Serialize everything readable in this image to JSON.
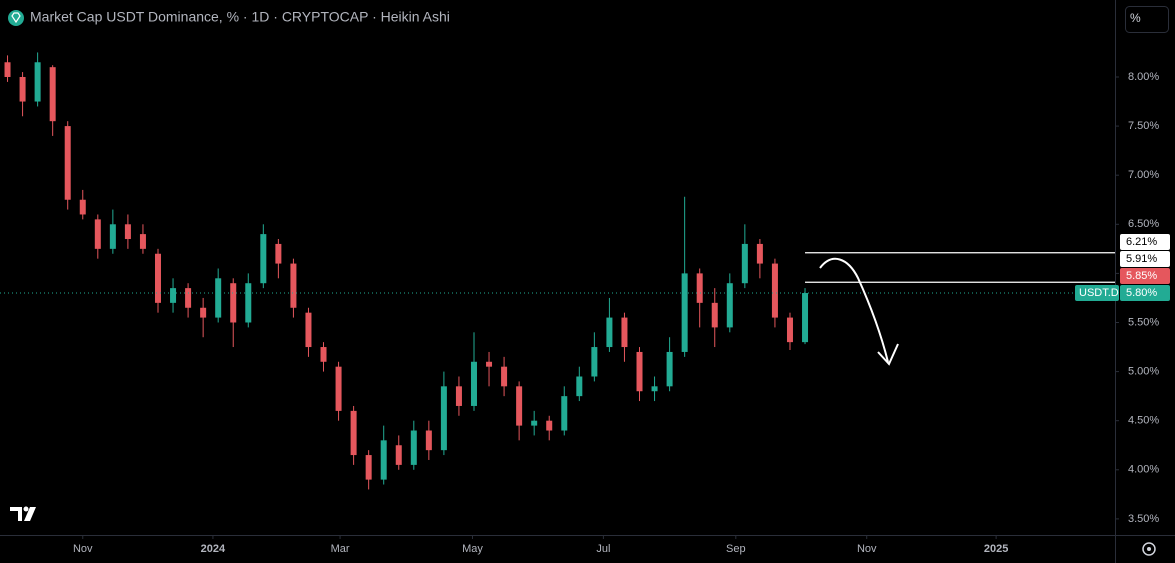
{
  "header": {
    "title": "Market Cap USDT Dominance, % · 1D · CRYPTOCAP · Heikin Ashi",
    "unit_button": "%"
  },
  "chart_data": {
    "type": "candlestick",
    "up_color": "#22ab94",
    "down_color": "#e5575d",
    "xlim": [
      0,
      74.1
    ],
    "xticks": [
      {
        "value": 5.5,
        "label": "Nov"
      },
      {
        "value": 14.15,
        "label": "2024"
      },
      {
        "value": 22.6,
        "label": "Mar"
      },
      {
        "value": 31.4,
        "label": "May"
      },
      {
        "value": 40.1,
        "label": "Jul"
      },
      {
        "value": 48.9,
        "label": "Sep"
      },
      {
        "value": 57.6,
        "label": "Nov"
      },
      {
        "value": 66.2,
        "label": "2025"
      }
    ],
    "ylim": [
      3.336,
      8.784
    ],
    "yticks": [
      {
        "value": 3.5,
        "label": "3.50%"
      },
      {
        "value": 4,
        "label": "4.00%"
      },
      {
        "value": 4.5,
        "label": "4.50%"
      },
      {
        "value": 5,
        "label": "5.00%"
      },
      {
        "value": 5.5,
        "label": "5.50%"
      },
      {
        "value": 6,
        "label": "6.00%"
      },
      {
        "value": 6.5,
        "label": "6.50%"
      },
      {
        "value": 7,
        "label": "7.00%"
      },
      {
        "value": 7.5,
        "label": "7.50%"
      },
      {
        "value": 8,
        "label": "8.00%"
      }
    ],
    "ohlc": [
      [
        8.15,
        8.22,
        7.95,
        8.0
      ],
      [
        8.0,
        8.05,
        7.6,
        7.75
      ],
      [
        7.75,
        8.25,
        7.7,
        8.15
      ],
      [
        8.1,
        8.12,
        7.4,
        7.55
      ],
      [
        7.5,
        7.55,
        6.65,
        6.75
      ],
      [
        6.75,
        6.85,
        6.55,
        6.6
      ],
      [
        6.55,
        6.6,
        6.15,
        6.25
      ],
      [
        6.25,
        6.65,
        6.2,
        6.5
      ],
      [
        6.5,
        6.6,
        6.25,
        6.35
      ],
      [
        6.4,
        6.5,
        6.2,
        6.25
      ],
      [
        6.2,
        6.25,
        5.6,
        5.7
      ],
      [
        5.7,
        5.95,
        5.6,
        5.85
      ],
      [
        5.85,
        5.9,
        5.55,
        5.65
      ],
      [
        5.65,
        5.75,
        5.35,
        5.55
      ],
      [
        5.55,
        6.05,
        5.5,
        5.95
      ],
      [
        5.9,
        5.95,
        5.25,
        5.5
      ],
      [
        5.5,
        6.0,
        5.45,
        5.9
      ],
      [
        5.9,
        6.5,
        5.85,
        6.4
      ],
      [
        6.3,
        6.35,
        5.95,
        6.1
      ],
      [
        6.1,
        6.15,
        5.55,
        5.65
      ],
      [
        5.6,
        5.65,
        5.15,
        5.25
      ],
      [
        5.25,
        5.3,
        5.0,
        5.1
      ],
      [
        5.05,
        5.1,
        4.5,
        4.6
      ],
      [
        4.6,
        4.65,
        4.05,
        4.15
      ],
      [
        4.15,
        4.2,
        3.8,
        3.9
      ],
      [
        3.9,
        4.45,
        3.85,
        4.3
      ],
      [
        4.25,
        4.35,
        4.0,
        4.05
      ],
      [
        4.05,
        4.5,
        4.0,
        4.4
      ],
      [
        4.4,
        4.5,
        4.1,
        4.2
      ],
      [
        4.2,
        5.0,
        4.15,
        4.85
      ],
      [
        4.85,
        4.95,
        4.55,
        4.65
      ],
      [
        4.65,
        5.4,
        4.6,
        5.1
      ],
      [
        5.1,
        5.2,
        4.85,
        5.05
      ],
      [
        5.05,
        5.15,
        4.75,
        4.85
      ],
      [
        4.85,
        4.9,
        4.3,
        4.45
      ],
      [
        4.45,
        4.6,
        4.35,
        4.5
      ],
      [
        4.5,
        4.55,
        4.3,
        4.4
      ],
      [
        4.4,
        4.85,
        4.35,
        4.75
      ],
      [
        4.75,
        5.05,
        4.7,
        4.95
      ],
      [
        4.95,
        5.4,
        4.9,
        5.25
      ],
      [
        5.25,
        5.75,
        5.2,
        5.55
      ],
      [
        5.55,
        5.6,
        5.1,
        5.25
      ],
      [
        5.2,
        5.25,
        4.7,
        4.8
      ],
      [
        4.8,
        4.95,
        4.7,
        4.85
      ],
      [
        4.85,
        5.35,
        4.8,
        5.2
      ],
      [
        5.2,
        6.78,
        5.15,
        6.0
      ],
      [
        6.0,
        6.05,
        5.45,
        5.7
      ],
      [
        5.7,
        5.85,
        5.25,
        5.45
      ],
      [
        5.45,
        6.0,
        5.4,
        5.9
      ],
      [
        5.9,
        6.5,
        5.85,
        6.3
      ],
      [
        6.3,
        6.35,
        5.95,
        6.1
      ],
      [
        6.1,
        6.15,
        5.45,
        5.55
      ],
      [
        5.55,
        5.6,
        5.22,
        5.3
      ],
      [
        5.3,
        5.85,
        5.28,
        5.8
      ]
    ],
    "price_lines": [
      {
        "value": 6.21,
        "label": "6.21%"
      },
      {
        "value": 5.91,
        "label": "5.91%"
      }
    ],
    "markers": [
      {
        "value": 5.85,
        "label": "5.85%",
        "color": "#e5575d"
      },
      {
        "symbol": "USDT.D",
        "value": 5.8,
        "label": "5.80%",
        "color": "#22ab94"
      }
    ]
  }
}
